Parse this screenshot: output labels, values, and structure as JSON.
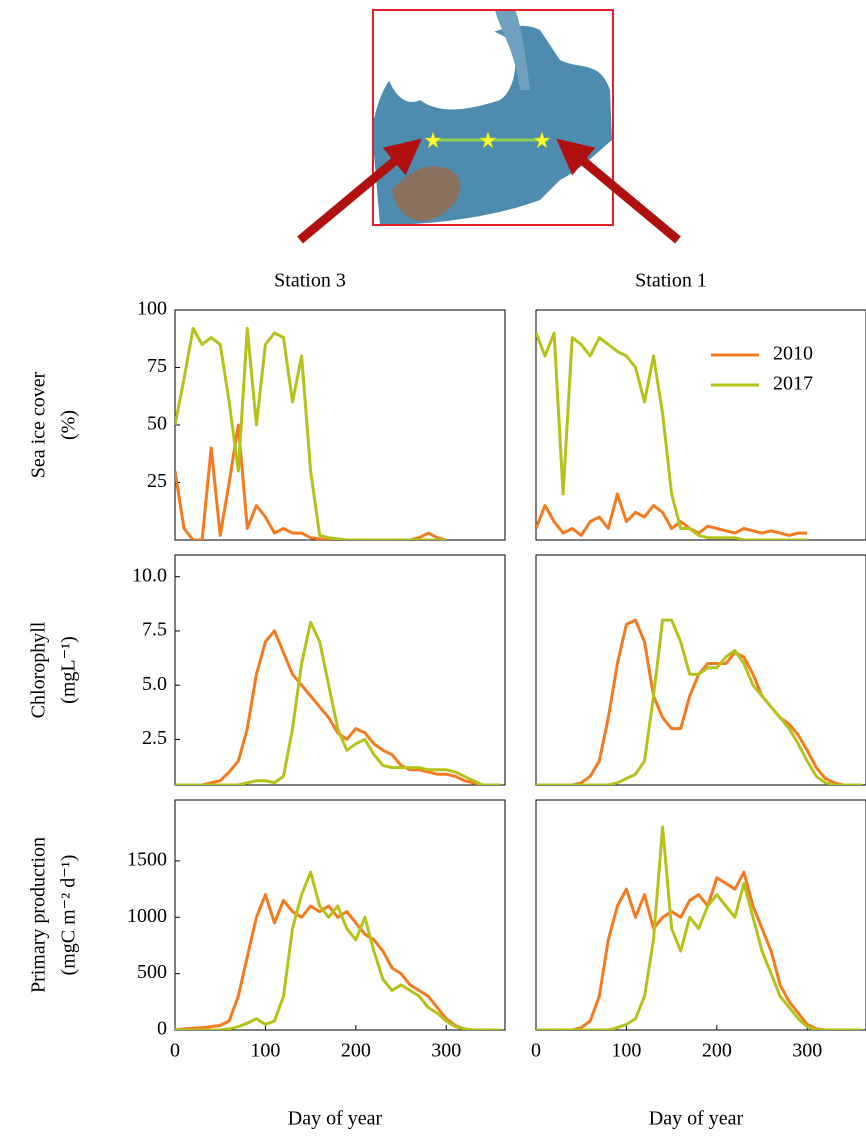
{
  "chart_data": [
    {
      "type": "line",
      "title": "Station 3",
      "ylabel": [
        "Sea ice cover",
        "(%)"
      ],
      "x": [
        0,
        10,
        20,
        30,
        40,
        50,
        60,
        70,
        80,
        90,
        100,
        110,
        120,
        130,
        140,
        150,
        160,
        170,
        180,
        190,
        200,
        210,
        220,
        230,
        240,
        250,
        260,
        270,
        280,
        290,
        300,
        310,
        320,
        330,
        340,
        350,
        360
      ],
      "xlim": [
        0,
        365
      ],
      "ylim": [
        0,
        100
      ],
      "yticks": [
        25,
        50,
        75,
        100
      ],
      "series": [
        {
          "color": "#f47a20",
          "values": [
            30,
            5,
            0,
            0,
            40,
            2,
            25,
            50,
            5,
            15,
            10,
            3,
            5,
            3,
            3,
            1,
            0.5,
            0,
            0,
            0,
            0,
            0,
            0,
            0,
            0,
            0,
            0,
            1,
            3,
            1,
            0,
            null,
            null,
            null,
            null,
            null,
            null
          ]
        },
        {
          "color": "#b5c21a",
          "values": [
            50,
            70,
            92,
            85,
            88,
            85,
            60,
            30,
            92,
            50,
            85,
            90,
            88,
            60,
            80,
            30,
            2,
            1,
            0.5,
            0,
            0,
            0,
            0,
            0,
            0,
            0,
            0,
            0,
            0,
            0,
            0,
            null,
            null,
            null,
            null,
            null,
            null
          ]
        }
      ]
    },
    {
      "type": "line",
      "title": "Station 1",
      "legend": "upper right",
      "x": [
        0,
        10,
        20,
        30,
        40,
        50,
        60,
        70,
        80,
        90,
        100,
        110,
        120,
        130,
        140,
        150,
        160,
        170,
        180,
        190,
        200,
        210,
        220,
        230,
        240,
        250,
        260,
        270,
        280,
        290,
        300,
        310,
        320,
        330,
        340,
        350,
        360
      ],
      "xlim": [
        0,
        365
      ],
      "ylim": [
        0,
        100
      ],
      "series": [
        {
          "name": "2010",
          "color": "#f47a20",
          "values": [
            5,
            15,
            8,
            3,
            5,
            2,
            8,
            10,
            5,
            20,
            8,
            12,
            10,
            15,
            12,
            5,
            8,
            5,
            3,
            6,
            5,
            4,
            3,
            5,
            4,
            3,
            4,
            3,
            2,
            3,
            3,
            null,
            null,
            null,
            null,
            null,
            null
          ]
        },
        {
          "name": "2017",
          "color": "#b5c21a",
          "values": [
            90,
            80,
            90,
            20,
            88,
            85,
            80,
            88,
            85,
            82,
            80,
            75,
            60,
            80,
            55,
            20,
            5,
            5,
            2,
            1,
            1,
            1,
            1,
            0,
            0,
            0,
            0,
            0,
            0,
            0,
            0,
            null,
            null,
            null,
            null,
            null,
            null
          ]
        }
      ]
    },
    {
      "type": "line",
      "ylabel": [
        "Chlorophyll",
        "(mgL⁻¹)"
      ],
      "x": [
        0,
        10,
        20,
        30,
        40,
        50,
        60,
        70,
        80,
        90,
        100,
        110,
        120,
        130,
        140,
        150,
        160,
        170,
        180,
        190,
        200,
        210,
        220,
        230,
        240,
        250,
        260,
        270,
        280,
        290,
        300,
        310,
        320,
        330,
        340,
        350,
        360
      ],
      "xlim": [
        0,
        365
      ],
      "ylim": [
        0.4,
        11
      ],
      "yticks": [
        2.5,
        {
          "value": 5,
          "label": "5.0"
        },
        7.5,
        {
          "value": 10,
          "label": "10.0"
        }
      ],
      "series": [
        {
          "color": "#f47a20",
          "values": [
            0.4,
            0.4,
            0.4,
            0.4,
            0.5,
            0.6,
            1,
            1.5,
            3,
            5.5,
            7,
            7.5,
            6.5,
            5.5,
            5,
            4.5,
            4,
            3.5,
            2.8,
            2.5,
            3,
            2.8,
            2.3,
            2,
            1.8,
            1.3,
            1.1,
            1.1,
            1,
            0.9,
            0.9,
            0.8,
            0.6,
            0.5,
            0.4,
            0.4,
            0.4
          ]
        },
        {
          "color": "#b5c21a",
          "values": [
            0.4,
            0.4,
            0.4,
            0.4,
            0.4,
            0.4,
            0.4,
            0.4,
            0.5,
            0.6,
            0.6,
            0.5,
            0.8,
            3,
            6,
            7.9,
            7,
            5,
            3,
            2,
            2.3,
            2.5,
            1.8,
            1.3,
            1.2,
            1.2,
            1.2,
            1.2,
            1.1,
            1.1,
            1.1,
            1,
            0.8,
            0.6,
            0.4,
            0.4,
            0.4
          ]
        }
      ]
    },
    {
      "type": "line",
      "x": [
        0,
        10,
        20,
        30,
        40,
        50,
        60,
        70,
        80,
        90,
        100,
        110,
        120,
        130,
        140,
        150,
        160,
        170,
        180,
        190,
        200,
        210,
        220,
        230,
        240,
        250,
        260,
        270,
        280,
        290,
        300,
        310,
        320,
        330,
        340,
        350,
        360
      ],
      "xlim": [
        0,
        365
      ],
      "ylim": [
        0.4,
        11
      ],
      "series": [
        {
          "color": "#f47a20",
          "values": [
            0.4,
            0.4,
            0.4,
            0.4,
            0.4,
            0.5,
            0.8,
            1.5,
            3.5,
            6,
            7.8,
            8,
            7,
            4.5,
            3.5,
            3,
            3,
            4.5,
            5.5,
            6,
            6,
            6,
            6.5,
            6.3,
            5.5,
            4.5,
            4,
            3.5,
            3.2,
            2.7,
            2,
            1.2,
            0.7,
            0.5,
            0.4,
            0.4,
            0.4
          ]
        },
        {
          "color": "#b5c21a",
          "values": [
            0.4,
            0.4,
            0.4,
            0.4,
            0.4,
            0.4,
            0.4,
            0.4,
            0.4,
            0.5,
            0.7,
            0.9,
            1.5,
            4.5,
            8,
            8,
            7,
            5.5,
            5.5,
            5.8,
            5.8,
            6.3,
            6.6,
            6,
            5,
            4.5,
            4,
            3.5,
            3,
            2.3,
            1.5,
            0.8,
            0.5,
            0.4,
            0.4,
            0.4,
            0.4
          ]
        }
      ]
    },
    {
      "type": "line",
      "ylabel": [
        "Primary production",
        "(mgC m⁻² d⁻¹)"
      ],
      "xlabel": "Day of year",
      "x": [
        0,
        10,
        20,
        30,
        40,
        50,
        60,
        70,
        80,
        90,
        100,
        110,
        120,
        130,
        140,
        150,
        160,
        170,
        180,
        190,
        200,
        210,
        220,
        230,
        240,
        250,
        260,
        270,
        280,
        290,
        300,
        310,
        320,
        330,
        340,
        350,
        360
      ],
      "xlim": [
        0,
        365
      ],
      "ylim": [
        0,
        2040
      ],
      "xticks": [
        0,
        100,
        200,
        300
      ],
      "yticks": [
        0,
        500,
        1000,
        1500
      ],
      "series": [
        {
          "color": "#f47a20",
          "values": [
            0,
            10,
            15,
            20,
            30,
            40,
            80,
            300,
            650,
            1000,
            1200,
            950,
            1150,
            1050,
            1000,
            1100,
            1050,
            1100,
            1000,
            1050,
            950,
            850,
            800,
            700,
            550,
            500,
            400,
            350,
            300,
            200,
            100,
            40,
            10,
            0,
            0,
            0,
            0
          ]
        },
        {
          "color": "#b5c21a",
          "values": [
            0,
            0,
            0,
            0,
            0,
            0,
            10,
            30,
            60,
            100,
            50,
            80,
            300,
            900,
            1200,
            1400,
            1100,
            1000,
            1100,
            900,
            800,
            1000,
            700,
            450,
            350,
            400,
            350,
            300,
            200,
            150,
            80,
            30,
            10,
            0,
            0,
            0,
            0
          ]
        }
      ]
    },
    {
      "type": "line",
      "xlabel": "Day of year",
      "x": [
        0,
        10,
        20,
        30,
        40,
        50,
        60,
        70,
        80,
        90,
        100,
        110,
        120,
        130,
        140,
        150,
        160,
        170,
        180,
        190,
        200,
        210,
        220,
        230,
        240,
        250,
        260,
        270,
        280,
        290,
        300,
        310,
        320,
        330,
        340,
        350,
        360
      ],
      "xlim": [
        0,
        365
      ],
      "ylim": [
        0,
        2040
      ],
      "xticks": [
        0,
        100,
        200,
        300
      ],
      "series": [
        {
          "color": "#f47a20",
          "values": [
            0,
            0,
            0,
            0,
            0,
            20,
            80,
            300,
            800,
            1100,
            1250,
            1000,
            1200,
            900,
            1000,
            1050,
            1000,
            1150,
            1200,
            1100,
            1350,
            1300,
            1250,
            1400,
            1100,
            900,
            700,
            400,
            250,
            150,
            50,
            10,
            0,
            0,
            0,
            0,
            0
          ]
        },
        {
          "color": "#b5c21a",
          "values": [
            0,
            0,
            0,
            0,
            0,
            0,
            0,
            0,
            0,
            20,
            50,
            100,
            300,
            800,
            1800,
            900,
            700,
            1000,
            900,
            1100,
            1200,
            1100,
            1000,
            1300,
            1000,
            700,
            500,
            300,
            200,
            100,
            30,
            0,
            0,
            0,
            0,
            0,
            0
          ]
        }
      ]
    }
  ]
}
